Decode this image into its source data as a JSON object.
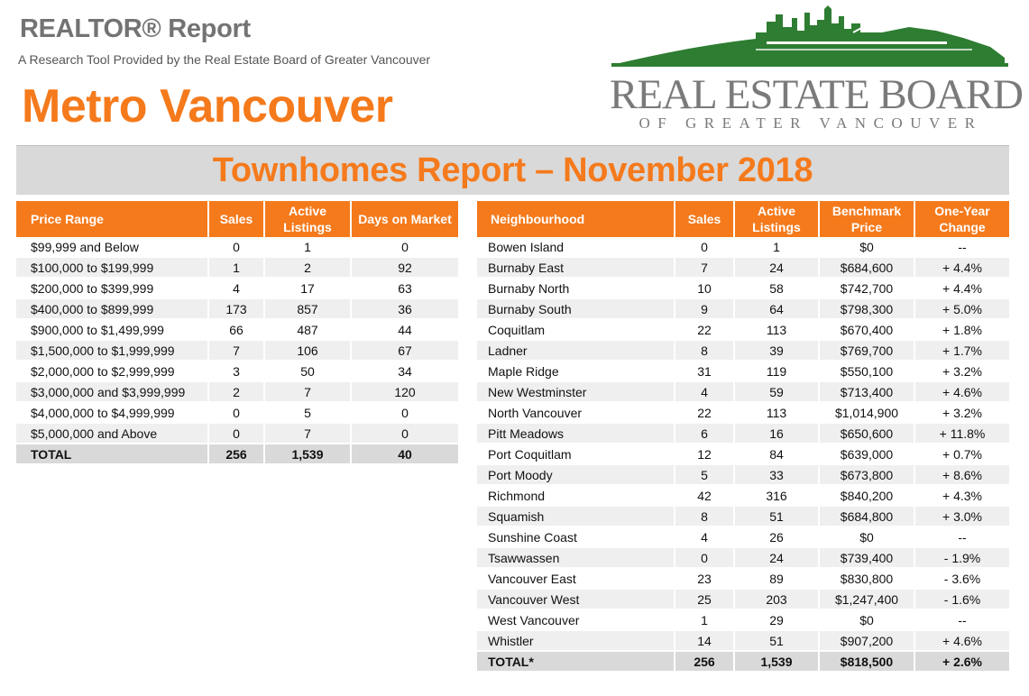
{
  "header": {
    "report_title": "REALTOR® Report",
    "subtitle": "A Research Tool Provided by the Real Estate Board of Greater Vancouver",
    "region": "Metro Vancouver"
  },
  "logo": {
    "name": "REAL ESTATE BOARD",
    "sub": "OF GREATER VANCOUVER",
    "colors": {
      "skyline": "#2e7d32",
      "text": "#7a7a7a"
    }
  },
  "report_banner": "Townhomes Report – November 2018",
  "colors": {
    "accent": "#f57a1c",
    "header_text": "#ffffff",
    "stripe": "#efefef",
    "total_row": "#d9d9d9"
  },
  "price_table": {
    "headers": [
      "Price Range",
      "Sales",
      "Active Listings",
      "Days on Market"
    ],
    "rows": [
      [
        "$99,999 and Below",
        "0",
        "1",
        "0"
      ],
      [
        "$100,000 to $199,999",
        "1",
        "2",
        "92"
      ],
      [
        "$200,000 to $399,999",
        "4",
        "17",
        "63"
      ],
      [
        "$400,000 to $899,999",
        "173",
        "857",
        "36"
      ],
      [
        "$900,000 to $1,499,999",
        "66",
        "487",
        "44"
      ],
      [
        "$1,500,000 to $1,999,999",
        "7",
        "106",
        "67"
      ],
      [
        "$2,000,000 to $2,999,999",
        "3",
        "50",
        "34"
      ],
      [
        "$3,000,000 and $3,999,999",
        "2",
        "7",
        "120"
      ],
      [
        "$4,000,000 to $4,999,999",
        "0",
        "5",
        "0"
      ],
      [
        "$5,000,000 and Above",
        "0",
        "7",
        "0"
      ]
    ],
    "total": [
      "TOTAL",
      "256",
      "1,539",
      "40"
    ]
  },
  "neighbourhood_table": {
    "headers": [
      "Neighbourhood",
      "Sales",
      "Active Listings",
      "Benchmark Price",
      "One-Year Change"
    ],
    "rows": [
      [
        "Bowen Island",
        "0",
        "1",
        "$0",
        "--"
      ],
      [
        "Burnaby East",
        "7",
        "24",
        "$684,600",
        "+ 4.4%"
      ],
      [
        "Burnaby North",
        "10",
        "58",
        "$742,700",
        "+ 4.4%"
      ],
      [
        "Burnaby South",
        "9",
        "64",
        "$798,300",
        "+ 5.0%"
      ],
      [
        "Coquitlam",
        "22",
        "113",
        "$670,400",
        "+ 1.8%"
      ],
      [
        "Ladner",
        "8",
        "39",
        "$769,700",
        "+ 1.7%"
      ],
      [
        "Maple Ridge",
        "31",
        "119",
        "$550,100",
        "+ 3.2%"
      ],
      [
        "New Westminster",
        "4",
        "59",
        "$713,400",
        "+ 4.6%"
      ],
      [
        "North Vancouver",
        "22",
        "113",
        "$1,014,900",
        "+ 3.2%"
      ],
      [
        "Pitt Meadows",
        "6",
        "16",
        "$650,600",
        "+ 11.8%"
      ],
      [
        "Port Coquitlam",
        "12",
        "84",
        "$639,000",
        "+ 0.7%"
      ],
      [
        "Port Moody",
        "5",
        "33",
        "$673,800",
        "+ 8.6%"
      ],
      [
        "Richmond",
        "42",
        "316",
        "$840,200",
        "+ 4.3%"
      ],
      [
        "Squamish",
        "8",
        "51",
        "$684,800",
        "+ 3.0%"
      ],
      [
        "Sunshine Coast",
        "4",
        "26",
        "$0",
        "--"
      ],
      [
        "Tsawwassen",
        "0",
        "24",
        "$739,400",
        "- 1.9%"
      ],
      [
        "Vancouver East",
        "23",
        "89",
        "$830,800",
        "- 3.6%"
      ],
      [
        "Vancouver West",
        "25",
        "203",
        "$1,247,400",
        "- 1.6%"
      ],
      [
        "West Vancouver",
        "1",
        "29",
        "$0",
        "--"
      ],
      [
        "Whistler",
        "14",
        "51",
        "$907,200",
        "+ 4.6%"
      ]
    ],
    "total": [
      "TOTAL*",
      "256",
      "1,539",
      "$818,500",
      "+ 2.6%"
    ]
  }
}
